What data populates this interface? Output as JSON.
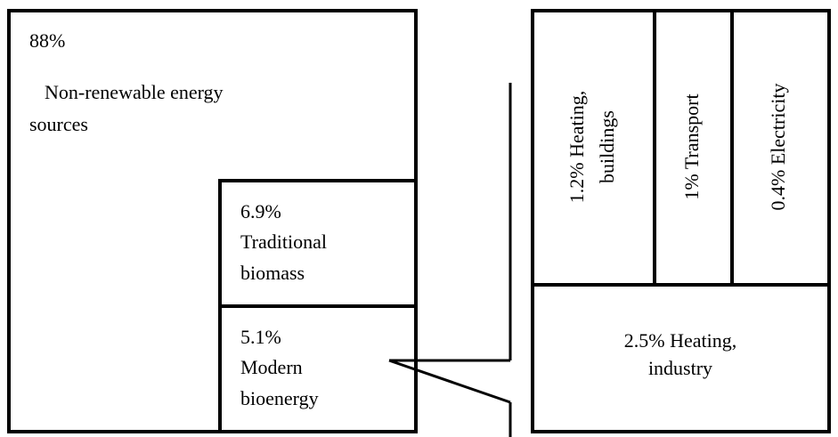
{
  "left": {
    "main": {
      "share": "88%",
      "lines": [
        "Non-renewable energy",
        "sources"
      ]
    },
    "traditional": {
      "lines": [
        "6.9%",
        "Traditional",
        "biomass"
      ]
    },
    "modern": {
      "lines": [
        "5.1%",
        "Modern",
        "bioenergy"
      ]
    }
  },
  "right": {
    "heating_buildings": {
      "lines": [
        "1.2% Heating,",
        "buildings"
      ]
    },
    "transport": {
      "lines": [
        "1% Transport"
      ]
    },
    "electricity": {
      "lines": [
        "0.4% Electricity"
      ]
    },
    "heating_industry": {
      "lines": [
        "2.5% Heating,",
        "industry"
      ]
    }
  }
}
